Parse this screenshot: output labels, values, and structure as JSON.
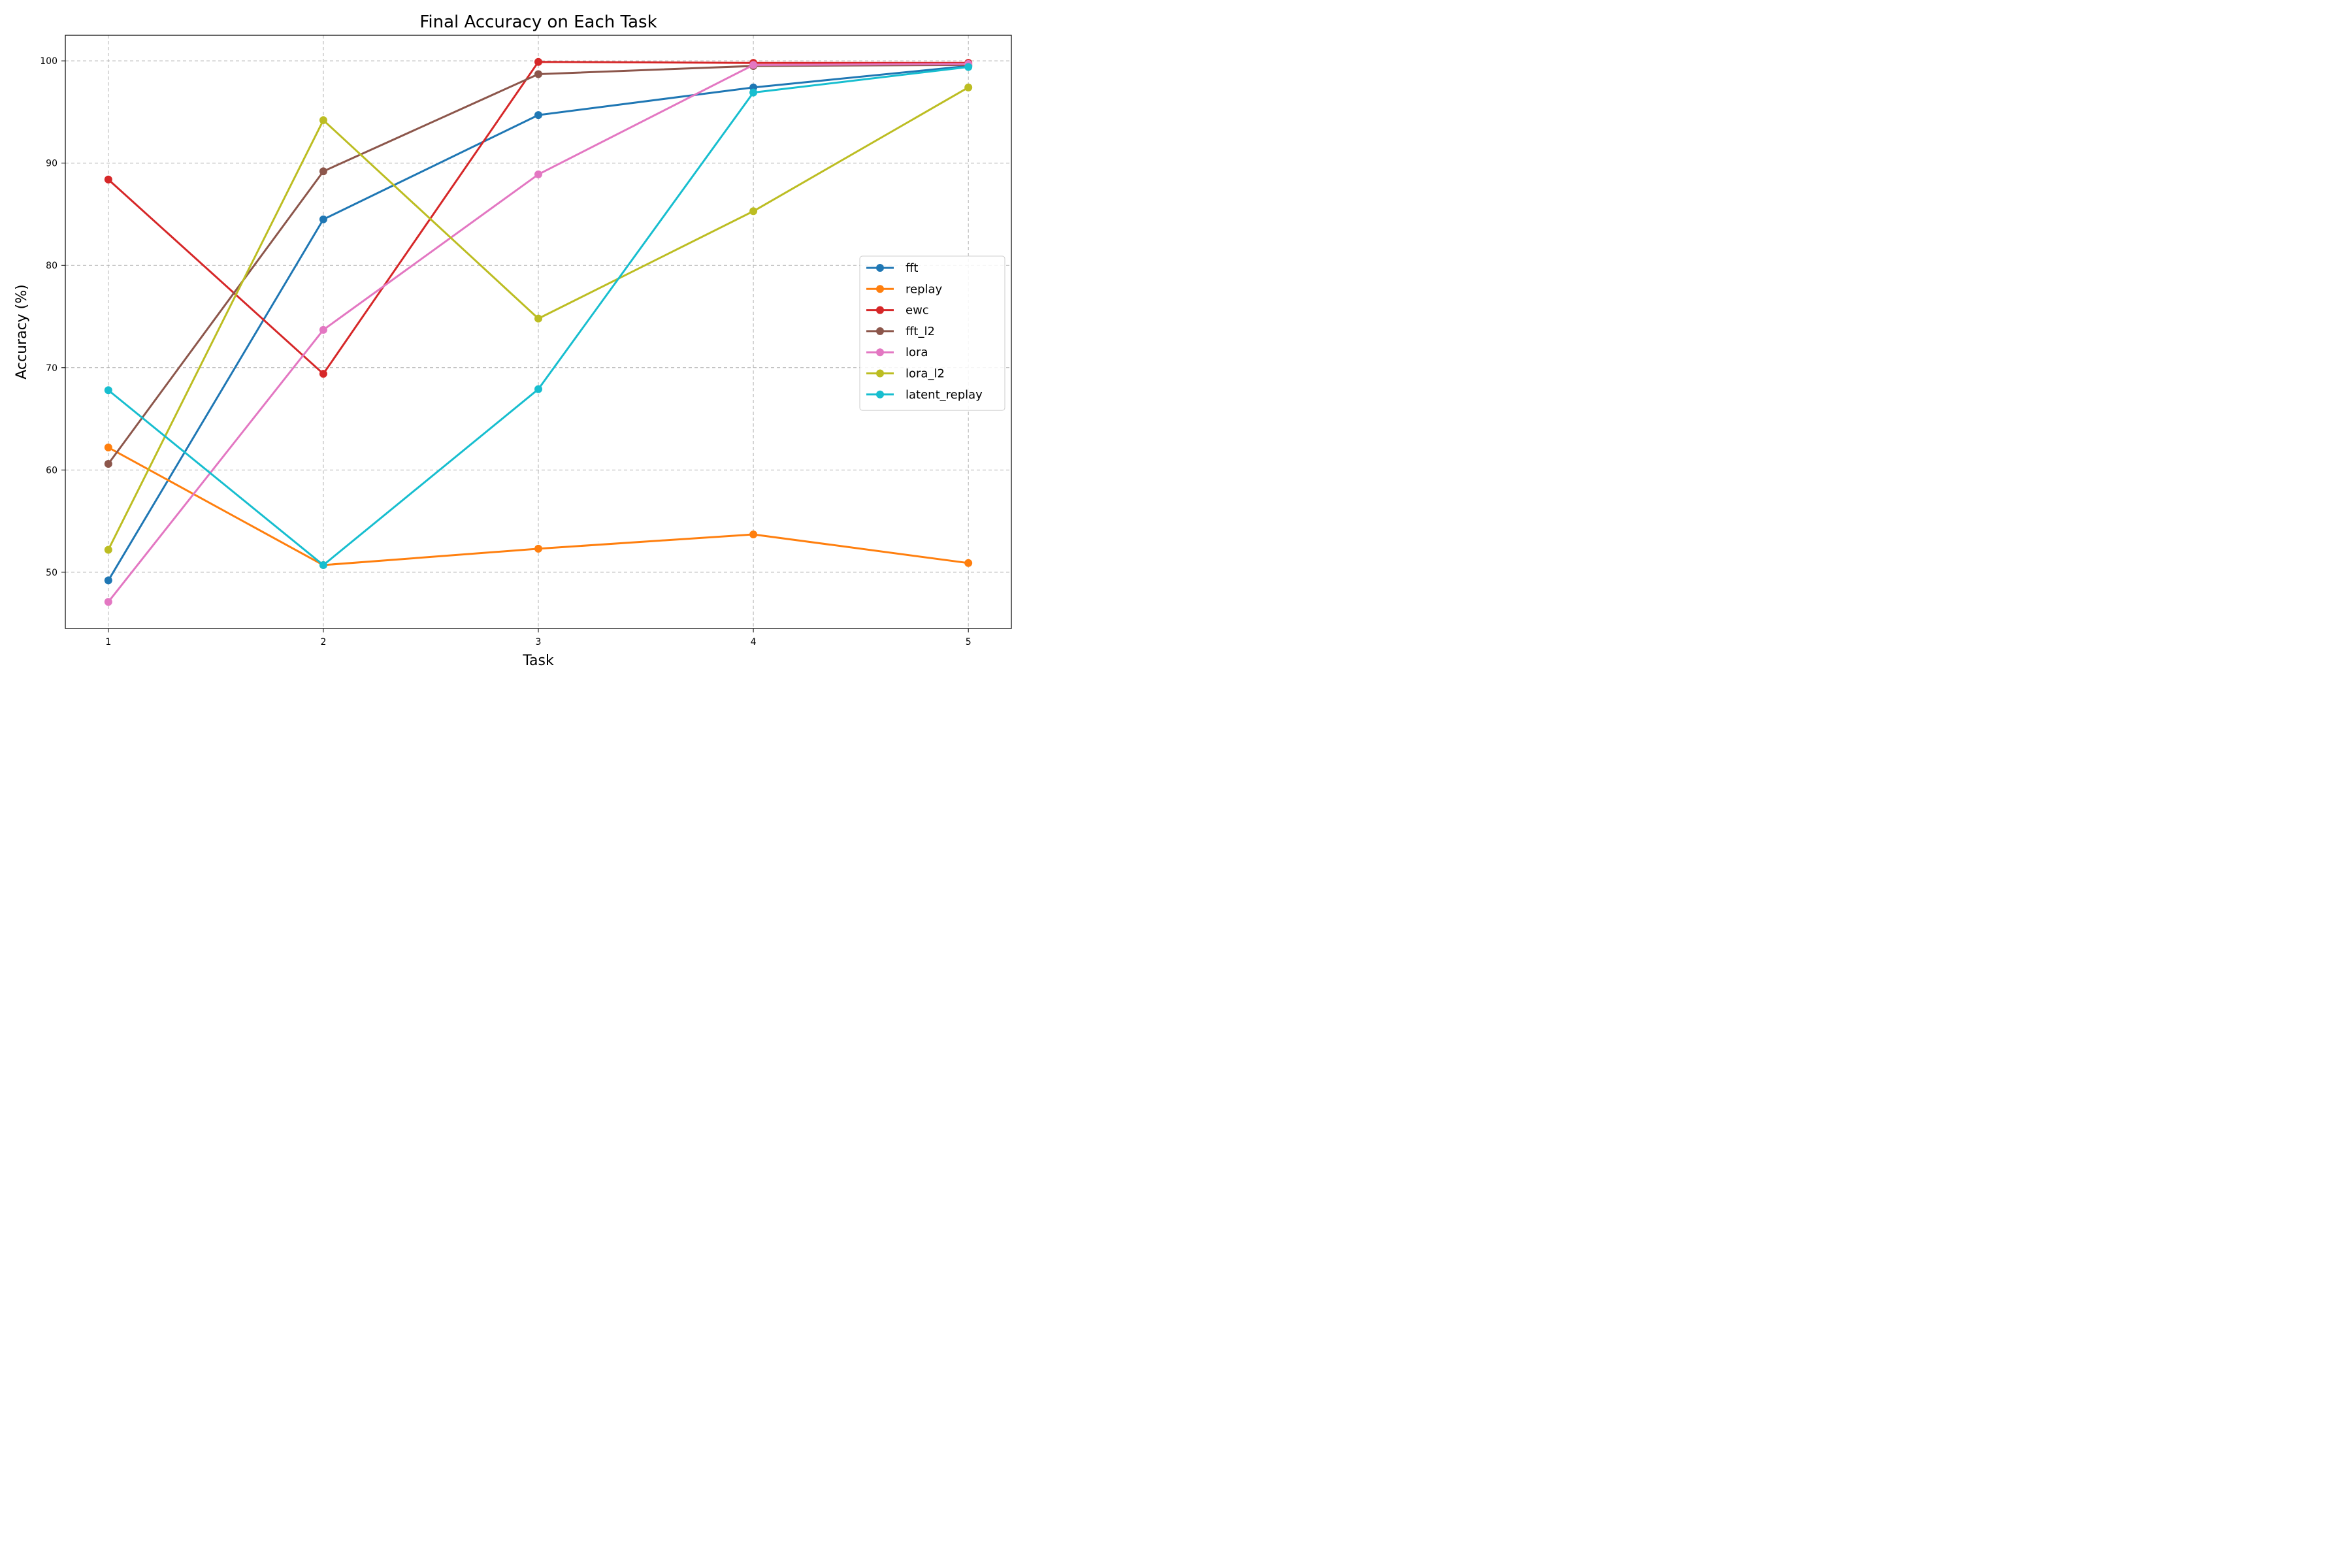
{
  "chart_data": {
    "type": "line",
    "title": "Final Accuracy on Each Task",
    "xlabel": "Task",
    "ylabel": "Accuracy (%)",
    "x": [
      1,
      2,
      3,
      4,
      5
    ],
    "xlim": [
      0.8,
      5.2
    ],
    "ylim": [
      44.5,
      102.5
    ],
    "xticks": [
      1,
      2,
      3,
      4,
      5
    ],
    "yticks": [
      50,
      60,
      70,
      80,
      90,
      100
    ],
    "grid": true,
    "legend_position": "center-right",
    "series": [
      {
        "name": "fft",
        "color": "#1f77b4",
        "values": [
          49.2,
          84.5,
          94.7,
          97.4,
          99.5
        ]
      },
      {
        "name": "replay",
        "color": "#ff7f0e",
        "values": [
          62.2,
          50.7,
          52.3,
          53.7,
          50.9
        ]
      },
      {
        "name": "ewc",
        "color": "#d62728",
        "values": [
          88.4,
          69.4,
          99.9,
          99.8,
          99.8
        ]
      },
      {
        "name": "fft_l2",
        "color": "#8c564b",
        "values": [
          60.6,
          89.2,
          98.7,
          99.5,
          99.6
        ]
      },
      {
        "name": "lora",
        "color": "#e377c2",
        "values": [
          47.1,
          73.7,
          88.9,
          99.6,
          99.7
        ]
      },
      {
        "name": "lora_l2",
        "color": "#bcbd22",
        "values": [
          52.2,
          94.2,
          74.8,
          85.3,
          97.4
        ]
      },
      {
        "name": "latent_replay",
        "color": "#17becf",
        "values": [
          67.8,
          50.7,
          67.9,
          96.9,
          99.4
        ]
      }
    ]
  }
}
